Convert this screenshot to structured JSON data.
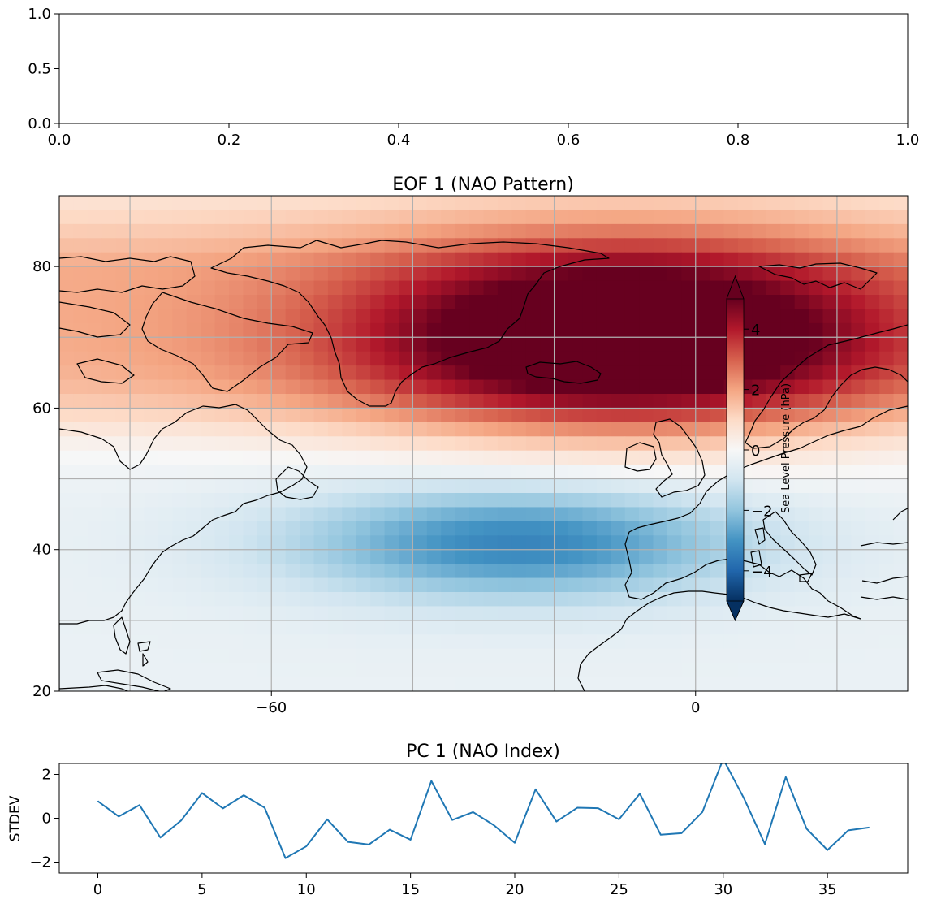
{
  "chart_data": [
    {
      "type": "line",
      "title": "",
      "xlim": [
        0.0,
        1.0
      ],
      "ylim": [
        0.0,
        1.0
      ],
      "x_ticks": [
        "0.0",
        "0.2",
        "0.4",
        "0.6",
        "0.8",
        "1.0"
      ],
      "y_ticks": [
        "0.0",
        "0.5",
        "1.0"
      ],
      "series": []
    },
    {
      "type": "heatmap",
      "title": "EOF 1 (NAO Pattern)",
      "xlim": [
        -90,
        30
      ],
      "ylim": [
        20,
        90
      ],
      "x_ticks": [
        "−60",
        "0"
      ],
      "y_ticks": [
        "20",
        "40",
        "60",
        "80"
      ],
      "grid": true,
      "colormap": "RdBu_r",
      "colorbar": {
        "label": "Sea Level Pressure (hPa)",
        "range": [
          -5,
          5
        ],
        "ticks": [
          "−4",
          "−2",
          "0",
          "2",
          "4"
        ],
        "extend": "both",
        "placement": "inside-right"
      },
      "pattern": [
        {
          "name": "high",
          "lon": -10,
          "lat": 70,
          "value": 5.2
        },
        {
          "name": "low",
          "lon": -25,
          "lat": 41,
          "value": -3.0
        }
      ]
    },
    {
      "type": "line",
      "title": "PC 1 (NAO Index)",
      "ylabel": "STDEV",
      "xlim": [
        -1.85,
        38.85
      ],
      "ylim": [
        -2.5,
        2.5
      ],
      "x_ticks": [
        "0",
        "5",
        "10",
        "15",
        "20",
        "25",
        "30",
        "35"
      ],
      "y_ticks": [
        "−2",
        "0",
        "2"
      ],
      "series": [
        {
          "color": "#1f77b4",
          "x": [
            0,
            1,
            2,
            3,
            4,
            5,
            6,
            7,
            8,
            9,
            10,
            11,
            12,
            13,
            14,
            15,
            16,
            17,
            18,
            19,
            20,
            21,
            22,
            23,
            24,
            25,
            26,
            27,
            28,
            29,
            30,
            31,
            32,
            33,
            34,
            35,
            36,
            37
          ],
          "y": [
            0.78,
            0.08,
            0.6,
            -0.88,
            -0.1,
            1.15,
            0.45,
            1.05,
            0.48,
            -1.82,
            -1.28,
            -0.05,
            -1.08,
            -1.2,
            -0.52,
            -0.98,
            1.7,
            -0.08,
            0.28,
            -0.32,
            -1.12,
            1.32,
            -0.15,
            0.48,
            0.46,
            -0.05,
            1.12,
            -0.75,
            -0.68,
            0.28,
            2.7,
            0.9,
            -1.18,
            1.88,
            -0.48,
            -1.45,
            -0.55,
            -0.42
          ]
        }
      ]
    }
  ]
}
